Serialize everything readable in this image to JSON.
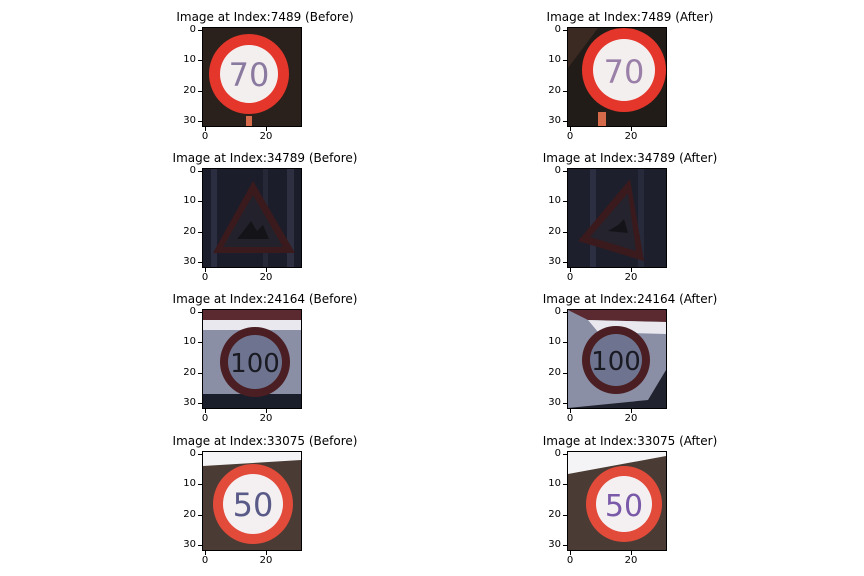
{
  "panels": [
    {
      "title": "Image at Index:7489 (Before)",
      "sign": "70"
    },
    {
      "title": "Image at Index:7489 (After)",
      "sign": "70"
    },
    {
      "title": "Image at Index:34789 (Before)",
      "sign": ""
    },
    {
      "title": "Image at Index:34789 (After)",
      "sign": ""
    },
    {
      "title": "Image at Index:24164 (Before)",
      "sign": "100"
    },
    {
      "title": "Image at Index:24164 (After)",
      "sign": "100"
    },
    {
      "title": "Image at Index:33075 (Before)",
      "sign": "50"
    },
    {
      "title": "Image at Index:33075 (After)",
      "sign": "50"
    }
  ],
  "yticks": [
    "0",
    "10",
    "20",
    "30"
  ],
  "xticks": [
    "0",
    "20"
  ],
  "colors": {
    "sign_red": "#e0322a",
    "sign_white": "#f6f0f0",
    "dark_bg": "#1f1a1a"
  }
}
